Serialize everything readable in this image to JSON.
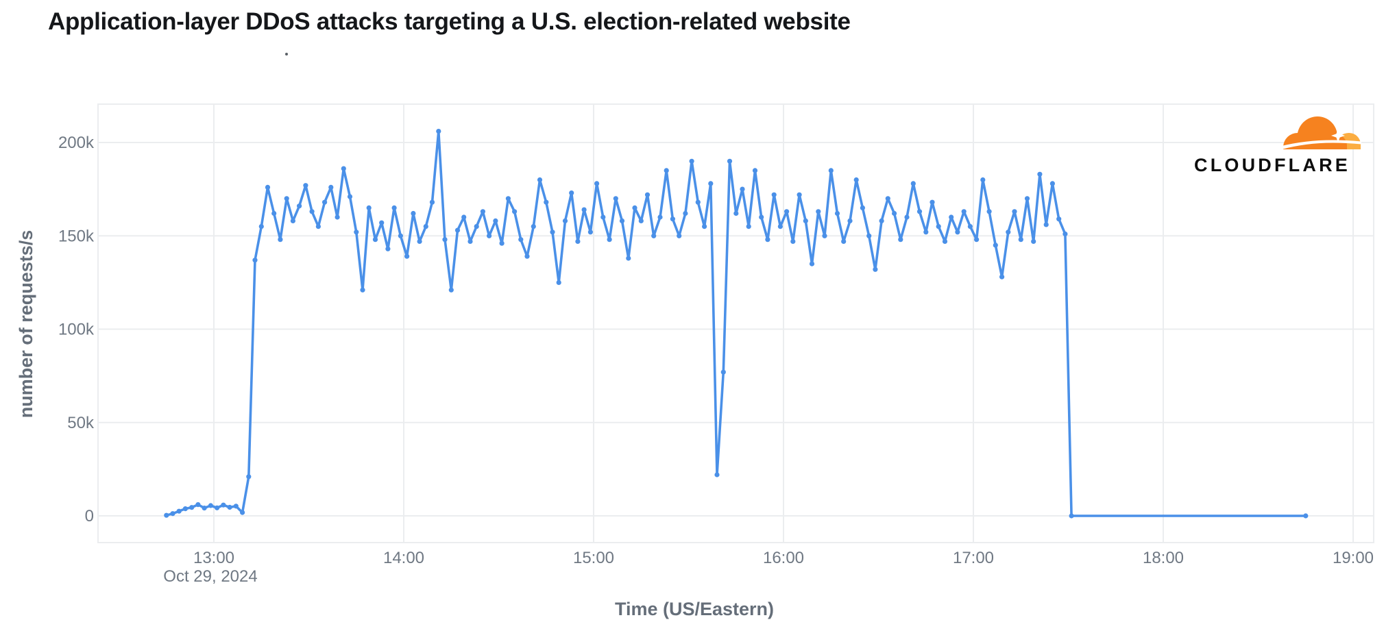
{
  "header": {
    "title_dot": "."
  },
  "logo": {
    "wordmark": "CLOUDFLARE",
    "cloud_main_color": "#f6821f",
    "cloud_light_color": "#fbad41"
  },
  "chart_data": {
    "type": "line",
    "title": "Application-layer DDoS attacks targeting a U.S. election-related website",
    "xlabel": "Time (US/Eastern)",
    "ylabel": "number of requests/s",
    "x_date_label": "Oct 29, 2024",
    "x_ticks": [
      "13:00",
      "14:00",
      "15:00",
      "16:00",
      "17:00",
      "18:00",
      "19:00"
    ],
    "y_ticks": [
      {
        "label": "0",
        "value": 0
      },
      {
        "label": "50k",
        "value": 50000
      },
      {
        "label": "100k",
        "value": 100000
      },
      {
        "label": "150k",
        "value": 150000
      },
      {
        "label": "200k",
        "value": 200000
      }
    ],
    "xlim": [
      "12:23",
      "19:06"
    ],
    "ylim": [
      -14000,
      220500
    ],
    "grid": true,
    "legend_position": "none",
    "line_color": "#4a90e8",
    "marker": "circle",
    "series": [
      {
        "name": "number of requests/s",
        "unit": "requests/s",
        "interval_minutes": 2,
        "times": [
          "12:45",
          "12:47",
          "12:49",
          "12:51",
          "12:53",
          "12:55",
          "12:57",
          "12:59",
          "13:01",
          "13:03",
          "13:05",
          "13:07",
          "13:09",
          "13:11",
          "13:13",
          "13:15",
          "13:17",
          "13:19",
          "13:21",
          "13:23",
          "13:25",
          "13:27",
          "13:29",
          "13:31",
          "13:33",
          "13:35",
          "13:37",
          "13:39",
          "13:41",
          "13:43",
          "13:45",
          "13:47",
          "13:49",
          "13:51",
          "13:53",
          "13:55",
          "13:57",
          "13:59",
          "14:01",
          "14:03",
          "14:05",
          "14:07",
          "14:09",
          "14:11",
          "14:13",
          "14:15",
          "14:17",
          "14:19",
          "14:21",
          "14:23",
          "14:25",
          "14:27",
          "14:29",
          "14:31",
          "14:33",
          "14:35",
          "14:37",
          "14:39",
          "14:41",
          "14:43",
          "14:45",
          "14:47",
          "14:49",
          "14:51",
          "14:53",
          "14:55",
          "14:57",
          "14:59",
          "15:01",
          "15:03",
          "15:05",
          "15:07",
          "15:09",
          "15:11",
          "15:13",
          "15:15",
          "15:17",
          "15:19",
          "15:21",
          "15:23",
          "15:25",
          "15:27",
          "15:29",
          "15:31",
          "15:33",
          "15:35",
          "15:37",
          "15:39",
          "15:41",
          "15:43",
          "15:45",
          "15:47",
          "15:49",
          "15:51",
          "15:53",
          "15:55",
          "15:57",
          "15:59",
          "16:01",
          "16:03",
          "16:05",
          "16:07",
          "16:09",
          "16:11",
          "16:13",
          "16:15",
          "16:17",
          "16:19",
          "16:21",
          "16:23",
          "16:25",
          "16:27",
          "16:29",
          "16:31",
          "16:33",
          "16:35",
          "16:37",
          "16:39",
          "16:41",
          "16:43",
          "16:45",
          "16:47",
          "16:49",
          "16:51",
          "16:53",
          "16:55",
          "16:57",
          "16:59",
          "17:01",
          "17:03",
          "17:05",
          "17:07",
          "17:09",
          "17:11",
          "17:13",
          "17:15",
          "17:17",
          "17:19",
          "17:21",
          "17:23",
          "17:25",
          "17:27",
          "17:29",
          "17:31",
          "17:33",
          "17:35",
          "17:37",
          "17:39",
          "17:41",
          "17:43",
          "17:45",
          "17:47",
          "17:49",
          "17:51",
          "17:53",
          "17:55",
          "17:57",
          "17:59",
          "18:01",
          "18:03",
          "18:05",
          "18:07",
          "18:09",
          "18:11",
          "18:13",
          "18:15",
          "18:17",
          "18:19",
          "18:21",
          "18:23",
          "18:25",
          "18:27",
          "18:29",
          "18:31",
          "18:33",
          "18:35",
          "18:37",
          "18:39",
          "18:41",
          "18:43",
          "18:45"
        ],
        "values": [
          300,
          1200,
          2500,
          3800,
          4500,
          6000,
          4200,
          5500,
          4300,
          5800,
          4600,
          5200,
          1800,
          21000,
          137000,
          155000,
          176000,
          162000,
          148000,
          170000,
          158000,
          166000,
          177000,
          163000,
          155000,
          168000,
          176000,
          160000,
          186000,
          171000,
          152000,
          121000,
          165000,
          148000,
          157000,
          143000,
          165000,
          150000,
          139000,
          162000,
          147000,
          155000,
          168000,
          206000,
          148000,
          121000,
          153000,
          160000,
          147000,
          155000,
          163000,
          150000,
          158000,
          146000,
          170000,
          163000,
          148000,
          139000,
          155000,
          180000,
          168000,
          152000,
          125000,
          158000,
          173000,
          147000,
          164000,
          152000,
          178000,
          160000,
          148000,
          170000,
          158000,
          138000,
          165000,
          158000,
          172000,
          150000,
          160000,
          185000,
          159000,
          150000,
          162000,
          190000,
          168000,
          155000,
          178000,
          22000,
          77000,
          190000,
          162000,
          175000,
          155000,
          185000,
          160000,
          148000,
          172000,
          155000,
          163000,
          147000,
          172000,
          158000,
          135000,
          163000,
          150000,
          185000,
          162000,
          147000,
          158000,
          180000,
          165000,
          150000,
          132000,
          158000,
          170000,
          162000,
          148000,
          160000,
          178000,
          163000,
          152000,
          168000,
          155000,
          147000,
          160000,
          152000,
          163000,
          155000,
          148000,
          180000,
          163000,
          145000,
          128000,
          152000,
          163000,
          148000,
          170000,
          147000,
          183000,
          156000,
          178000,
          159000,
          151000,
          0,
          0,
          0,
          0,
          0,
          0,
          0,
          0,
          0,
          0,
          0,
          0,
          0,
          0,
          0,
          0,
          0,
          0,
          0,
          0,
          0,
          0,
          0,
          0,
          0,
          0,
          0,
          0,
          0,
          0,
          0,
          0,
          0,
          0,
          0,
          0,
          0,
          0
        ]
      }
    ]
  }
}
